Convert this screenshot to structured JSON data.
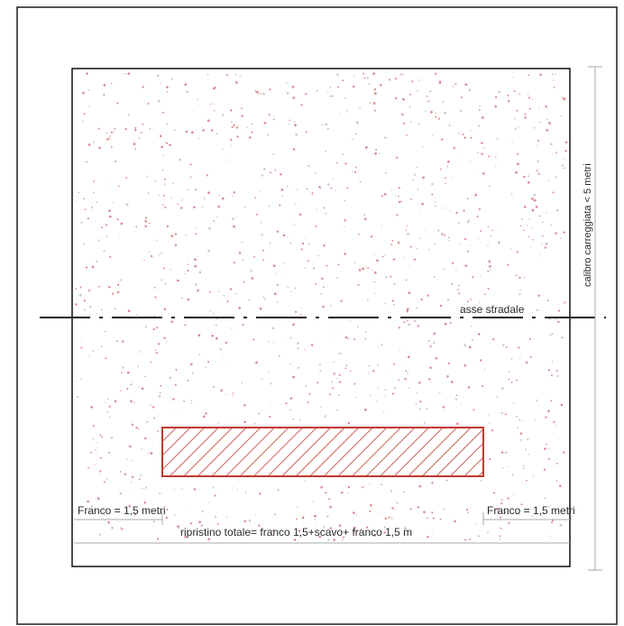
{
  "labels": {
    "road_axis": "asse stradale",
    "carriageway_width": "calibro carreggiata < 5 metri",
    "clearance_left": "Franco = 1,5 metri",
    "clearance_right": "Franco = 1,5 metri",
    "total_restoration": "ripristino totale= franco 1,5+scavo+ franco 1,5 m"
  },
  "colors": {
    "frame": "#2b2b2b",
    "road_outline": "#1e1e1e",
    "gravel_dots": "#d98c8c",
    "excavation_hatch": "#c0392b",
    "dimension_lines": "#a8a8a8"
  }
}
